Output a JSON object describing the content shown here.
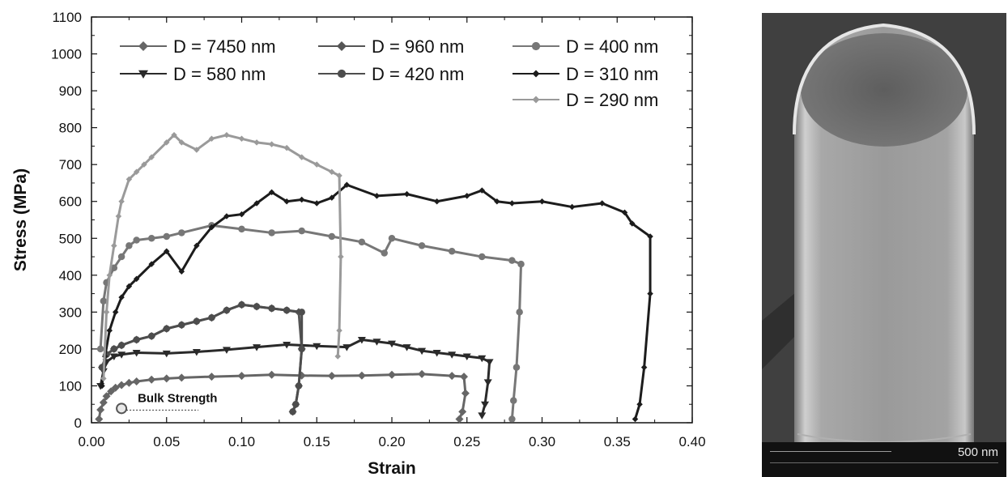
{
  "chart_data": {
    "type": "line",
    "xlabel": "Strain",
    "ylabel": "Stress (MPa)",
    "xlim": [
      0.0,
      0.4
    ],
    "ylim": [
      0,
      1100
    ],
    "x_ticks": [
      "0.00",
      "0.05",
      "0.10",
      "0.15",
      "0.20",
      "0.25",
      "0.30",
      "0.35",
      "0.40"
    ],
    "y_ticks": [
      "0",
      "100",
      "200",
      "300",
      "400",
      "500",
      "600",
      "700",
      "800",
      "900",
      "1000",
      "1100"
    ],
    "grid": false,
    "legend_placement": "top",
    "annotation": {
      "text": "Bulk Strength",
      "x": 0.02,
      "y": 30
    },
    "series": [
      {
        "name": "D = 7450 nm",
        "color": "#666666",
        "marker": "diamond",
        "x": [
          0.005,
          0.006,
          0.008,
          0.01,
          0.013,
          0.016,
          0.02,
          0.025,
          0.03,
          0.04,
          0.05,
          0.06,
          0.08,
          0.1,
          0.12,
          0.14,
          0.16,
          0.18,
          0.2,
          0.22,
          0.24,
          0.248,
          0.249,
          0.247,
          0.245
        ],
        "y": [
          10,
          35,
          55,
          72,
          85,
          95,
          102,
          108,
          112,
          117,
          120,
          122,
          125,
          127,
          130,
          128,
          127,
          128,
          130,
          132,
          127,
          125,
          80,
          30,
          10
        ]
      },
      {
        "name": "D = 960 nm",
        "color": "#555555",
        "marker": "diamond",
        "x": [
          0.007,
          0.01,
          0.015,
          0.02,
          0.03,
          0.04,
          0.05,
          0.06,
          0.07,
          0.08,
          0.09,
          0.1,
          0.11,
          0.12,
          0.13,
          0.138,
          0.14,
          0.138,
          0.136,
          0.134
        ],
        "y": [
          150,
          185,
          200,
          210,
          225,
          235,
          255,
          265,
          275,
          285,
          305,
          320,
          315,
          310,
          305,
          300,
          200,
          100,
          50,
          30
        ]
      },
      {
        "name": "D = 580 nm",
        "color": "#2a2a2a",
        "marker": "triangle-down",
        "x": [
          0.006,
          0.008,
          0.01,
          0.015,
          0.02,
          0.03,
          0.05,
          0.07,
          0.09,
          0.11,
          0.13,
          0.15,
          0.17,
          0.18,
          0.19,
          0.2,
          0.21,
          0.22,
          0.23,
          0.24,
          0.25,
          0.26,
          0.265,
          0.264,
          0.262,
          0.26
        ],
        "y": [
          100,
          140,
          165,
          180,
          185,
          190,
          188,
          192,
          198,
          205,
          212,
          208,
          205,
          225,
          220,
          215,
          205,
          195,
          190,
          185,
          180,
          175,
          165,
          110,
          50,
          20
        ]
      },
      {
        "name": "D = 420 nm",
        "color": "#4d4d4d",
        "marker": "circle",
        "x": [
          0.007,
          0.01,
          0.015,
          0.02,
          0.03,
          0.04,
          0.05,
          0.06,
          0.07,
          0.08,
          0.09,
          0.1,
          0.11,
          0.12,
          0.13,
          0.14,
          0.14,
          0.138,
          0.136,
          0.134
        ],
        "y": [
          150,
          185,
          200,
          210,
          225,
          235,
          255,
          265,
          275,
          285,
          305,
          320,
          315,
          310,
          305,
          300,
          200,
          100,
          50,
          30
        ]
      },
      {
        "name": "D = 400 nm",
        "color": "#777777",
        "marker": "circle",
        "x": [
          0.006,
          0.008,
          0.01,
          0.015,
          0.02,
          0.025,
          0.03,
          0.04,
          0.05,
          0.06,
          0.08,
          0.1,
          0.12,
          0.14,
          0.16,
          0.18,
          0.195,
          0.2,
          0.22,
          0.24,
          0.26,
          0.28,
          0.286,
          0.285,
          0.283,
          0.281,
          0.28
        ],
        "y": [
          200,
          330,
          380,
          420,
          450,
          480,
          495,
          500,
          505,
          515,
          535,
          525,
          515,
          520,
          505,
          490,
          460,
          500,
          480,
          465,
          450,
          440,
          430,
          300,
          150,
          60,
          10
        ]
      },
      {
        "name": "D = 310 nm",
        "color": "#1c1c1c",
        "marker": "diamond-small",
        "x": [
          0.007,
          0.009,
          0.012,
          0.016,
          0.02,
          0.025,
          0.03,
          0.04,
          0.05,
          0.06,
          0.07,
          0.08,
          0.09,
          0.1,
          0.11,
          0.12,
          0.13,
          0.14,
          0.15,
          0.16,
          0.17,
          0.19,
          0.21,
          0.23,
          0.25,
          0.26,
          0.27,
          0.28,
          0.3,
          0.32,
          0.34,
          0.355,
          0.36,
          0.372,
          0.372,
          0.368,
          0.365,
          0.362
        ],
        "y": [
          100,
          180,
          250,
          300,
          340,
          370,
          390,
          430,
          465,
          410,
          480,
          530,
          560,
          565,
          595,
          625,
          600,
          605,
          595,
          610,
          645,
          615,
          620,
          600,
          615,
          630,
          600,
          595,
          600,
          585,
          595,
          570,
          540,
          505,
          350,
          150,
          50,
          10
        ]
      },
      {
        "name": "D = 290 nm",
        "color": "#9a9a9a",
        "marker": "diamond-small",
        "x": [
          0.008,
          0.01,
          0.012,
          0.015,
          0.018,
          0.02,
          0.025,
          0.03,
          0.035,
          0.04,
          0.05,
          0.055,
          0.06,
          0.07,
          0.08,
          0.09,
          0.1,
          0.11,
          0.12,
          0.13,
          0.14,
          0.15,
          0.16,
          0.165,
          0.166,
          0.165,
          0.164
        ],
        "y": [
          120,
          300,
          400,
          480,
          560,
          600,
          660,
          680,
          700,
          720,
          760,
          780,
          760,
          740,
          770,
          780,
          770,
          760,
          755,
          745,
          720,
          700,
          680,
          670,
          450,
          250,
          180
        ]
      }
    ]
  },
  "sem_image": {
    "scale_label": "500 nm"
  }
}
